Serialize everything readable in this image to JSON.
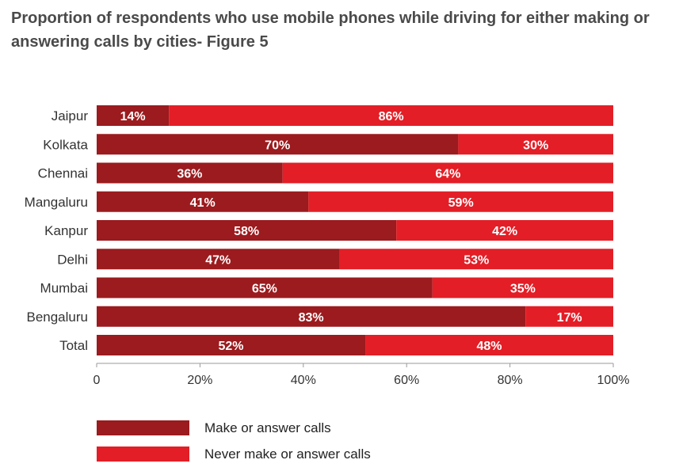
{
  "chart_data": {
    "type": "bar",
    "orientation": "horizontal",
    "stacked": true,
    "title": "Proportion of respondents who use mobile phones while driving for either making or answering calls by cities- Figure 5",
    "categories": [
      "Jaipur",
      "Kolkata",
      "Chennai",
      "Mangaluru",
      "Kanpur",
      "Delhi",
      "Mumbai",
      "Bengaluru",
      "Total"
    ],
    "series": [
      {
        "name": "Make or answer calls",
        "color": "#9b1b1e",
        "values": [
          14,
          70,
          36,
          41,
          58,
          47,
          65,
          83,
          52
        ],
        "labels": [
          "14%",
          "70%",
          "36%",
          "41%",
          "58%",
          "47%",
          "65%",
          "83%",
          "52%"
        ]
      },
      {
        "name": "Never make or answer calls",
        "color": "#e31e26",
        "values": [
          86,
          30,
          64,
          59,
          42,
          53,
          35,
          17,
          48
        ],
        "labels": [
          "86%",
          "30%",
          "64%",
          "59%",
          "42%",
          "53%",
          "35%",
          "17%",
          "48%"
        ]
      }
    ],
    "xlim": [
      0,
      100
    ],
    "xticks": [
      "0",
      "20%",
      "40%",
      "60%",
      "80%",
      "100%"
    ],
    "xlabel": "",
    "ylabel": "",
    "grid": false,
    "legend_position": "bottom-left"
  }
}
